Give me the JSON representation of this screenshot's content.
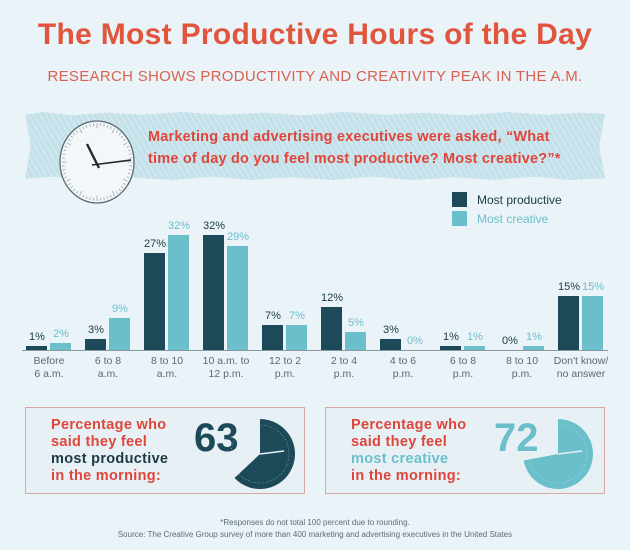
{
  "header": {
    "title": "The Most Productive Hours of the Day",
    "subtitle": "RESEARCH SHOWS PRODUCTIVITY AND CREATIVITY PEAK IN THE A.M."
  },
  "banner": {
    "question_line1": "Marketing and advertising executives were asked, “What",
    "question_line2": "time of day do you feel most productive? Most creative?”*"
  },
  "legend": {
    "productive": "Most productive",
    "creative": "Most creative"
  },
  "colors": {
    "title": "#e0553c",
    "productive": "#1d4a58",
    "creative": "#6bbfcb",
    "background": "#e9f3f8"
  },
  "chart_data": {
    "type": "bar",
    "title": "The Most Productive Hours of the Day",
    "subtitle": "Research shows productivity and creativity peak in the a.m.",
    "categories": [
      "Before 6 a.m.",
      "6 to 8 a.m.",
      "8 to 10 a.m.",
      "10 a.m. to 12 p.m.",
      "12 to 2 p.m.",
      "2 to 4 p.m.",
      "4 to 6 p.m.",
      "6 to 8 p.m.",
      "8 to 10 p.m.",
      "Don't know/ no answer"
    ],
    "category_lines": [
      [
        "Before",
        "6 a.m."
      ],
      [
        "6 to 8",
        "a.m."
      ],
      [
        "8 to 10",
        "a.m."
      ],
      [
        "10 a.m. to",
        "12 p.m."
      ],
      [
        "12 to 2",
        "p.m."
      ],
      [
        "2 to 4",
        "p.m."
      ],
      [
        "4 to 6",
        "p.m."
      ],
      [
        "6 to 8",
        "p.m."
      ],
      [
        "8 to 10",
        "p.m."
      ],
      [
        "Don't know/",
        "no answer"
      ]
    ],
    "series": [
      {
        "name": "Most productive",
        "values": [
          1,
          3,
          27,
          32,
          7,
          12,
          3,
          1,
          0,
          15
        ]
      },
      {
        "name": "Most creative",
        "values": [
          2,
          9,
          32,
          29,
          7,
          5,
          0,
          1,
          1,
          15
        ]
      }
    ],
    "value_labels": {
      "productive": [
        "1%",
        "3%",
        "27%",
        "32%",
        "7%",
        "12%",
        "3%",
        "1%",
        "0%",
        "15%"
      ],
      "creative": [
        "2%",
        "9%",
        "32%",
        "29%",
        "7%",
        "5%",
        "0%",
        "1%",
        "1%",
        "15%"
      ]
    },
    "xlabel": "",
    "ylabel": "",
    "ylim": [
      0,
      35
    ],
    "grid": false,
    "legend_position": "top-right",
    "annotations": [
      "*Responses do not total 100 percent due to rounding."
    ]
  },
  "stats": {
    "productive": {
      "line1": "Percentage who",
      "line2": "said they feel",
      "line3": "most productive",
      "line4": "in the morning:",
      "value": "63"
    },
    "creative": {
      "line1": "Percentage who",
      "line2": "said they feel",
      "line3": "most creative",
      "line4": "in the morning:",
      "value": "72"
    }
  },
  "footer": {
    "note": "*Responses do not total 100 percent due to rounding.",
    "source": "Source: The Creative Group survey of more than 400 marketing and advertising executives in the United States"
  }
}
